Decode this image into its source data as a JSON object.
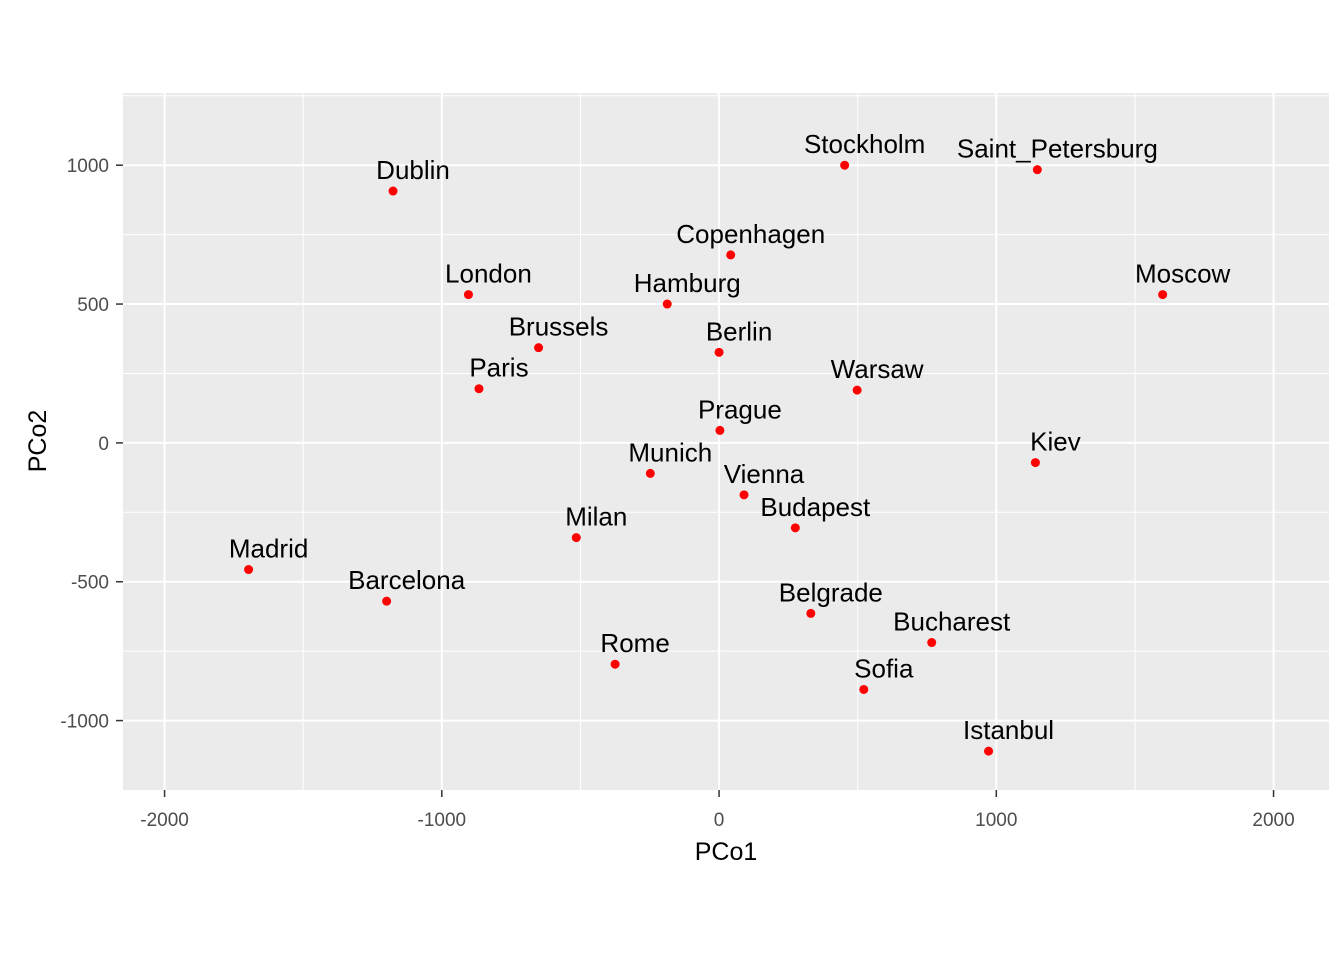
{
  "chart_data": {
    "type": "scatter",
    "title": "",
    "xlabel": "PCo1",
    "ylabel": "PCo2",
    "xlim": [
      -2150,
      2200
    ],
    "ylim": [
      -1250,
      1260
    ],
    "x_ticks": [
      -2000,
      -1000,
      0,
      1000,
      2000
    ],
    "y_ticks": [
      -1000,
      -500,
      0,
      500,
      1000
    ],
    "x_tick_labels": [
      "-2000",
      "-1000",
      "0",
      "1000",
      "2000"
    ],
    "y_tick_labels": [
      "-1000",
      "-500",
      "0",
      "500",
      "1000"
    ],
    "grid": true,
    "legend": "none",
    "point_color": "#ff0000",
    "panel_color": "#ebebeb",
    "points": [
      {
        "label": "Stockholm",
        "x": 453,
        "y": 1000
      },
      {
        "label": "Saint_Petersburg",
        "x": 1148,
        "y": 984
      },
      {
        "label": "Dublin",
        "x": -1176,
        "y": 907
      },
      {
        "label": "Copenhagen",
        "x": 42,
        "y": 677
      },
      {
        "label": "London",
        "x": -904,
        "y": 534
      },
      {
        "label": "Moscow",
        "x": 1600,
        "y": 534
      },
      {
        "label": "Hamburg",
        "x": -187,
        "y": 500
      },
      {
        "label": "Brussels",
        "x": -651,
        "y": 343
      },
      {
        "label": "Berlin",
        "x": 0,
        "y": 326
      },
      {
        "label": "Paris",
        "x": -866,
        "y": 195
      },
      {
        "label": "Warsaw",
        "x": 498,
        "y": 190
      },
      {
        "label": "Prague",
        "x": 3,
        "y": 45
      },
      {
        "label": "Kiev",
        "x": 1141,
        "y": -71
      },
      {
        "label": "Munich",
        "x": -248,
        "y": -110
      },
      {
        "label": "Vienna",
        "x": 90,
        "y": -187
      },
      {
        "label": "Budapest",
        "x": 275,
        "y": -306
      },
      {
        "label": "Milan",
        "x": -515,
        "y": -341
      },
      {
        "label": "Madrid",
        "x": -1697,
        "y": -456
      },
      {
        "label": "Barcelona",
        "x": -1199,
        "y": -570
      },
      {
        "label": "Belgrade",
        "x": 331,
        "y": -614
      },
      {
        "label": "Bucharest",
        "x": 767,
        "y": -719
      },
      {
        "label": "Rome",
        "x": -375,
        "y": -797
      },
      {
        "label": "Sofia",
        "x": 522,
        "y": -888
      },
      {
        "label": "Istanbul",
        "x": 972,
        "y": -1110
      }
    ]
  }
}
